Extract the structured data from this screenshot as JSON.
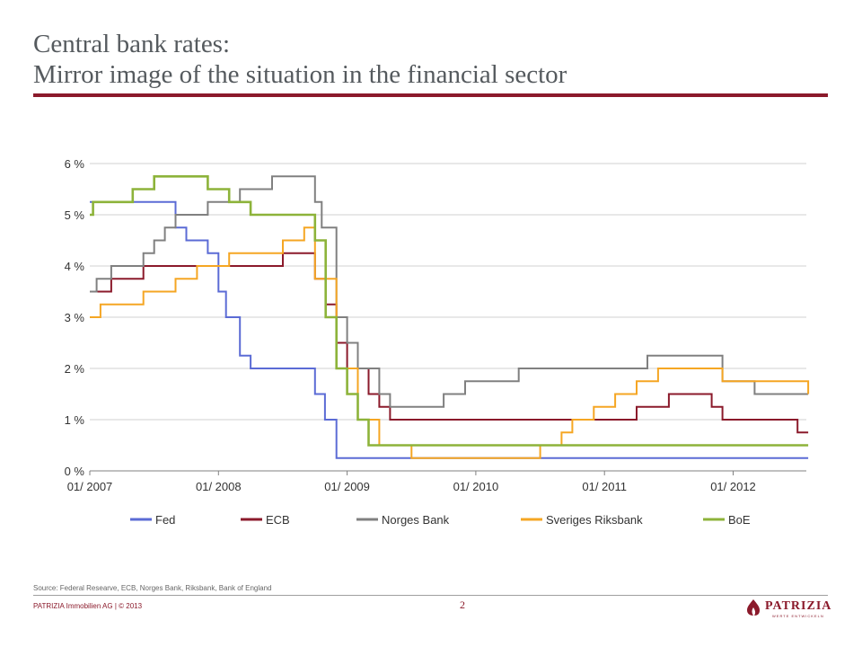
{
  "page": {
    "title_line1": "Central bank rates:",
    "title_line2": "Mirror image of the situation in the financial sector",
    "source": "Source: Federal Researve, ECB, Norges Bank, Riksbank, Bank of England",
    "company": "PATRIZIA Immobilien AG | © 2013",
    "page_number": "2",
    "logo_text": "PATRIZIA",
    "logo_subtext": "WERTE ENTWICKELN",
    "brand_color": "#8b1a2b"
  },
  "chart_data": {
    "type": "line",
    "title": "",
    "xlabel": "",
    "ylabel": "",
    "y_tick_labels": [
      "0 %",
      "1 %",
      "2 %",
      "3 %",
      "4 %",
      "5 %",
      "6 %"
    ],
    "x_tick_labels": [
      "01/ 2007",
      "01/ 2008",
      "01/ 2009",
      "01/ 2010",
      "01/ 2011",
      "01/ 2012"
    ],
    "x_range": [
      "2007-01",
      "2012-08"
    ],
    "ylim": [
      0,
      6
    ],
    "grid": true,
    "legend_position": "bottom",
    "step": true,
    "series": [
      {
        "name": "Fed",
        "color": "#5b6bd5",
        "points": [
          [
            "2007-01",
            5.25
          ],
          [
            "2007-09",
            4.75
          ],
          [
            "2007-10",
            4.5
          ],
          [
            "2007-12",
            4.25
          ],
          [
            "2008-01",
            3.5
          ],
          [
            "2008-01-22",
            3.0
          ],
          [
            "2008-03",
            2.25
          ],
          [
            "2008-04",
            2.0
          ],
          [
            "2008-10",
            1.5
          ],
          [
            "2008-10-29",
            1.0
          ],
          [
            "2008-12",
            0.25
          ],
          [
            "2012-08",
            0.25
          ]
        ]
      },
      {
        "name": "ECB",
        "color": "#8b1a2b",
        "points": [
          [
            "2007-01",
            3.5
          ],
          [
            "2007-03",
            3.75
          ],
          [
            "2007-06",
            4.0
          ],
          [
            "2008-07",
            4.25
          ],
          [
            "2008-10",
            3.75
          ],
          [
            "2008-11",
            3.25
          ],
          [
            "2008-12",
            2.5
          ],
          [
            "2009-01",
            2.0
          ],
          [
            "2009-03",
            1.5
          ],
          [
            "2009-04",
            1.25
          ],
          [
            "2009-05",
            1.0
          ],
          [
            "2011-04",
            1.25
          ],
          [
            "2011-07",
            1.5
          ],
          [
            "2011-11",
            1.25
          ],
          [
            "2011-12",
            1.0
          ],
          [
            "2012-07",
            0.75
          ],
          [
            "2012-08",
            0.75
          ]
        ]
      },
      {
        "name": "Norges Bank",
        "color": "#808080",
        "points": [
          [
            "2007-01",
            3.5
          ],
          [
            "2007-01-20",
            3.75
          ],
          [
            "2007-03",
            4.0
          ],
          [
            "2007-06",
            4.25
          ],
          [
            "2007-07",
            4.5
          ],
          [
            "2007-08",
            4.75
          ],
          [
            "2007-09",
            5.0
          ],
          [
            "2007-12",
            5.25
          ],
          [
            "2008-03",
            5.5
          ],
          [
            "2008-06",
            5.75
          ],
          [
            "2008-10",
            5.25
          ],
          [
            "2008-10-20",
            4.75
          ],
          [
            "2008-12",
            3.0
          ],
          [
            "2009-01",
            2.5
          ],
          [
            "2009-02",
            2.0
          ],
          [
            "2009-04",
            1.5
          ],
          [
            "2009-05",
            1.25
          ],
          [
            "2009-10",
            1.5
          ],
          [
            "2009-12",
            1.75
          ],
          [
            "2010-05",
            2.0
          ],
          [
            "2011-05",
            2.25
          ],
          [
            "2011-12",
            1.75
          ],
          [
            "2012-03",
            1.5
          ],
          [
            "2012-08",
            1.5
          ]
        ]
      },
      {
        "name": "Sveriges Riksbank",
        "color": "#f5a623",
        "points": [
          [
            "2007-01",
            3.0
          ],
          [
            "2007-02",
            3.25
          ],
          [
            "2007-06",
            3.5
          ],
          [
            "2007-09",
            3.75
          ],
          [
            "2007-11",
            4.0
          ],
          [
            "2008-02",
            4.25
          ],
          [
            "2008-07",
            4.5
          ],
          [
            "2008-09",
            4.75
          ],
          [
            "2008-10",
            3.75
          ],
          [
            "2008-12",
            2.0
          ],
          [
            "2009-02",
            1.0
          ],
          [
            "2009-04",
            0.5
          ],
          [
            "2009-07",
            0.25
          ],
          [
            "2010-07",
            0.5
          ],
          [
            "2010-09",
            0.75
          ],
          [
            "2010-10",
            1.0
          ],
          [
            "2010-12",
            1.25
          ],
          [
            "2011-02",
            1.5
          ],
          [
            "2011-04",
            1.75
          ],
          [
            "2011-06",
            2.0
          ],
          [
            "2011-12",
            1.75
          ],
          [
            "2012-08",
            1.5
          ]
        ]
      },
      {
        "name": "BoE",
        "color": "#8db33a",
        "points": [
          [
            "2007-01",
            5.0
          ],
          [
            "2007-01-10",
            5.25
          ],
          [
            "2007-05",
            5.5
          ],
          [
            "2007-07",
            5.75
          ],
          [
            "2007-12",
            5.5
          ],
          [
            "2008-02",
            5.25
          ],
          [
            "2008-04",
            5.0
          ],
          [
            "2008-10",
            4.5
          ],
          [
            "2008-11",
            3.0
          ],
          [
            "2008-12",
            2.0
          ],
          [
            "2009-01",
            1.5
          ],
          [
            "2009-02",
            1.0
          ],
          [
            "2009-03",
            0.5
          ],
          [
            "2012-08",
            0.5
          ]
        ]
      }
    ]
  }
}
